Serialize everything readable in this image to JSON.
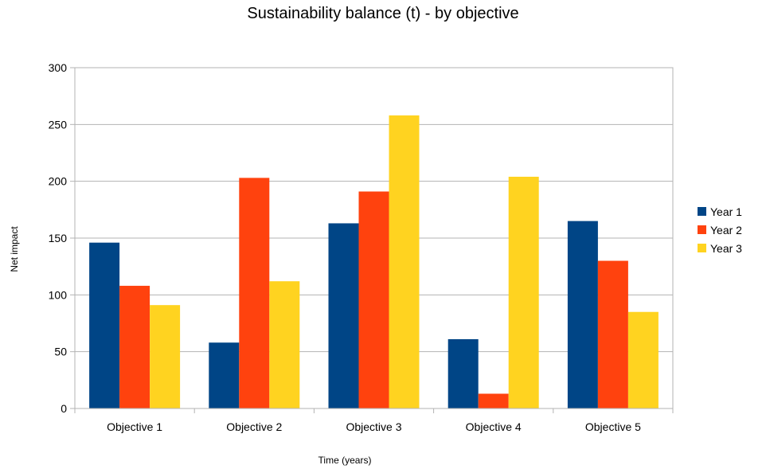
{
  "chart_data": {
    "type": "bar",
    "title": "Sustainability balance (t) - by objective",
    "xlabel": "Time (years)",
    "ylabel": "Net impact",
    "categories": [
      "Objective 1",
      "Objective 2",
      "Objective 3",
      "Objective 4",
      "Objective 5"
    ],
    "series": [
      {
        "name": "Year 1",
        "color": "#004586",
        "values": [
          146,
          58,
          163,
          61,
          165
        ]
      },
      {
        "name": "Year 2",
        "color": "#ff420e",
        "values": [
          108,
          203,
          191,
          13,
          130
        ]
      },
      {
        "name": "Year 3",
        "color": "#ffd320",
        "values": [
          91,
          112,
          258,
          204,
          85
        ]
      }
    ],
    "ylim": [
      0,
      300
    ],
    "yticks": [
      "0",
      "50",
      "100",
      "150",
      "200",
      "250",
      "300"
    ],
    "ytick_values": [
      0,
      50,
      100,
      150,
      200,
      250,
      300
    ],
    "grid": true,
    "legend_position": "right"
  }
}
